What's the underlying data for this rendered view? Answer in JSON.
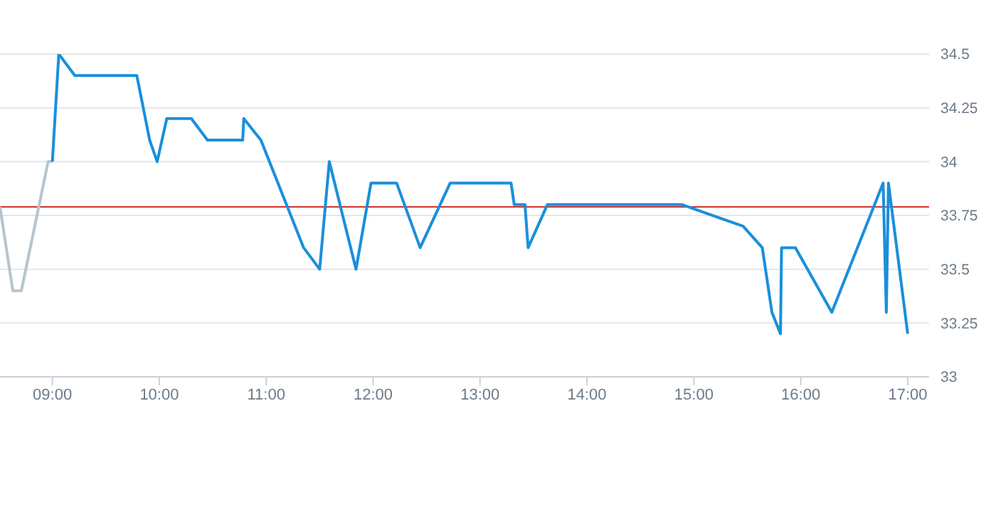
{
  "chart_data": {
    "type": "line",
    "xlim": [
      8.51,
      17.2
    ],
    "xticks": [
      {
        "value": 9,
        "label": "09:00"
      },
      {
        "value": 10,
        "label": "10:00"
      },
      {
        "value": 11,
        "label": "11:00"
      },
      {
        "value": 12,
        "label": "12:00"
      },
      {
        "value": 13,
        "label": "13:00"
      },
      {
        "value": 14,
        "label": "14:00"
      },
      {
        "value": 15,
        "label": "15:00"
      },
      {
        "value": 16,
        "label": "16:00"
      },
      {
        "value": 17,
        "label": "17:00"
      }
    ],
    "ylim": [
      33,
      34.5
    ],
    "yticks": [
      33,
      33.25,
      33.5,
      33.75,
      34,
      34.25,
      34.5
    ],
    "grid": "y",
    "legend": false,
    "marker": "none",
    "line_style": "solid",
    "series": [
      {
        "color": "#b8c4cc",
        "x": [
          8.51,
          8.63,
          8.71,
          8.96,
          9.0
        ],
        "values": [
          33.79,
          33.4,
          33.4,
          34.0,
          34.0
        ]
      },
      {
        "color": "#1a8fdc",
        "x": [
          9.0,
          9.06,
          9.21,
          9.79,
          9.91,
          9.98,
          10.07,
          10.3,
          10.45,
          10.78,
          10.79,
          10.95,
          11.35,
          11.5,
          11.59,
          11.84,
          11.98,
          12.22,
          12.44,
          12.72,
          13.29,
          13.32,
          13.42,
          13.45,
          13.63,
          14.89,
          15.46,
          15.64,
          15.73,
          15.81,
          15.82,
          15.95,
          16.29,
          16.77,
          16.8,
          16.82,
          17.0
        ],
        "values": [
          34.0,
          34.5,
          34.4,
          34.4,
          34.1,
          34.0,
          34.2,
          34.2,
          34.1,
          34.1,
          34.2,
          34.1,
          33.6,
          33.5,
          34.0,
          33.5,
          33.9,
          33.9,
          33.6,
          33.9,
          33.9,
          33.8,
          33.8,
          33.6,
          33.8,
          33.8,
          33.7,
          33.6,
          33.3,
          33.2,
          33.6,
          33.6,
          33.3,
          33.9,
          33.3,
          33.9,
          33.2
        ]
      }
    ],
    "ref_lines": [
      {
        "axis": "y",
        "value": 33.79,
        "color": "#d0342c"
      }
    ]
  }
}
